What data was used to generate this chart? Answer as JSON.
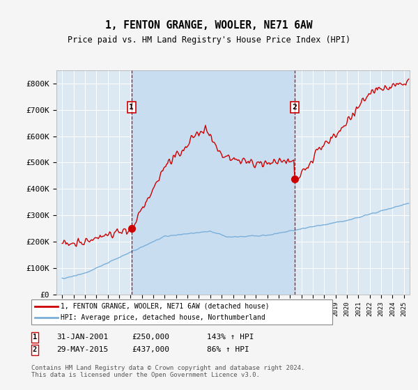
{
  "title": "1, FENTON GRANGE, WOOLER, NE71 6AW",
  "subtitle": "Price paid vs. HM Land Registry's House Price Index (HPI)",
  "ylim": [
    0,
    850000
  ],
  "yticks": [
    0,
    100000,
    200000,
    300000,
    400000,
    500000,
    600000,
    700000,
    800000
  ],
  "ytick_labels": [
    "£0",
    "£100K",
    "£200K",
    "£300K",
    "£400K",
    "£500K",
    "£600K",
    "£700K",
    "£800K"
  ],
  "sale1_x": 2001.08,
  "sale1_y": 250000,
  "sale2_x": 2015.41,
  "sale2_y": 437000,
  "line1_color": "#cc0000",
  "line2_color": "#7aafda",
  "plot_bg": "#dce8f2",
  "highlight_bg": "#c8ddf0",
  "grid_color": "#ffffff",
  "legend1_label": "1, FENTON GRANGE, WOOLER, NE71 6AW (detached house)",
  "legend2_label": "HPI: Average price, detached house, Northumberland",
  "sale1_date": "31-JAN-2001",
  "sale1_price": "£250,000",
  "sale1_hpi": "143% ↑ HPI",
  "sale2_date": "29-MAY-2015",
  "sale2_price": "£437,000",
  "sale2_hpi": "86% ↑ HPI",
  "footer": "Contains HM Land Registry data © Crown copyright and database right 2024.\nThis data is licensed under the Open Government Licence v3.0.",
  "xmin": 1994.5,
  "xmax": 2025.5
}
